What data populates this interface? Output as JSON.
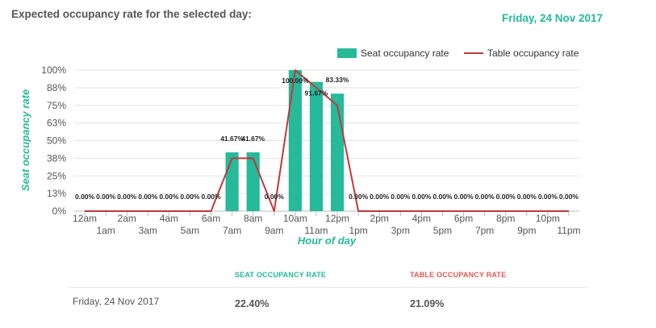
{
  "header": {
    "title": "Expected occupancy rate for the selected day:",
    "date": "Friday, 24 Nov 2017"
  },
  "colors": {
    "seat": "#26b99a",
    "table": "#c0393b",
    "table_heading": "#e05a5a"
  },
  "chart_data": {
    "type": "bar",
    "xlabel": "Hour of day",
    "ylabel": "Seat occupancy rate",
    "ylim": [
      0,
      100
    ],
    "yticks": [
      "0%",
      "13%",
      "25%",
      "38%",
      "50%",
      "63%",
      "75%",
      "88%",
      "100%"
    ],
    "ytick_values": [
      0,
      12.5,
      25,
      37.5,
      50,
      62.5,
      75,
      87.5,
      100
    ],
    "legend_position": "top-right",
    "grid": true,
    "categories": [
      "12am",
      "1am",
      "2am",
      "3am",
      "4am",
      "5am",
      "6am",
      "7am",
      "8am",
      "9am",
      "10am",
      "11am",
      "12pm",
      "1pm",
      "2pm",
      "3pm",
      "4pm",
      "5pm",
      "6pm",
      "7pm",
      "8pm",
      "9pm",
      "10pm",
      "11pm"
    ],
    "series": [
      {
        "name": "Seat occupancy rate",
        "kind": "bar",
        "values": [
          0,
          0,
          0,
          0,
          0,
          0,
          0,
          41.67,
          41.67,
          0,
          100,
          91.67,
          83.33,
          0,
          0,
          0,
          0,
          0,
          0,
          0,
          0,
          0,
          0,
          0
        ],
        "labels": [
          "0.00%",
          "0.00%",
          "0.00%",
          "0.00%",
          "0.00%",
          "0.00%",
          "0.00%",
          "41.67%",
          "41.67%",
          "0.00%",
          "100.00%",
          "91.67%",
          "83.33%",
          "0.00%",
          "0.00%",
          "0.00%",
          "0.00%",
          "0.00%",
          "0.00%",
          "0.00%",
          "0.00%",
          "0.00%",
          "0.00%",
          "0.00%"
        ]
      },
      {
        "name": "Table occupancy rate",
        "kind": "line",
        "values": [
          0,
          0,
          0,
          0,
          0,
          0,
          0,
          37.5,
          37.5,
          0,
          100,
          87.5,
          75,
          0,
          0,
          0,
          0,
          0,
          0,
          0,
          0,
          0,
          0,
          0
        ]
      }
    ]
  },
  "summary": {
    "seat_heading": "SEAT OCCUPANCY RATE",
    "table_heading": "TABLE OCCUPANCY RATE",
    "date": "Friday, 24 Nov 2017",
    "seat_value": "22.40%",
    "table_value": "21.09%"
  }
}
